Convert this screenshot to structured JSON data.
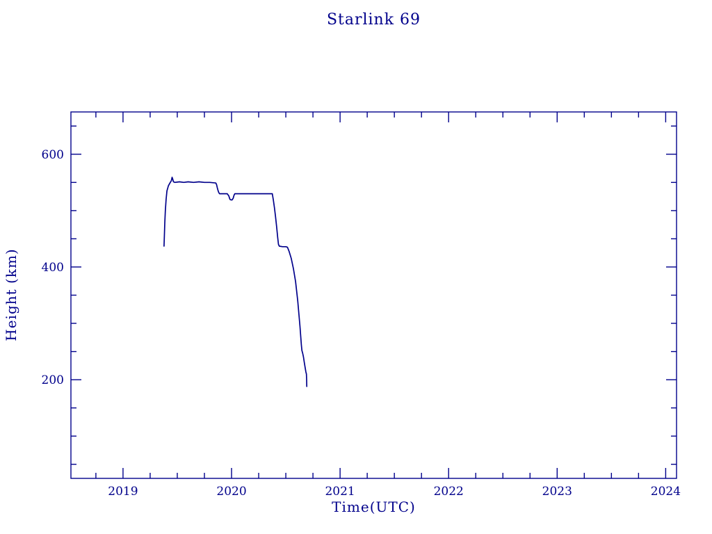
{
  "chart_data": {
    "type": "line",
    "title": "Starlink 69",
    "xlabel": "Time(UTC)",
    "ylabel": "Height (km)",
    "xlim": [
      2018.52,
      2024.1
    ],
    "ylim": [
      25,
      675
    ],
    "x_major_ticks": [
      2019,
      2020,
      2021,
      2022,
      2023,
      2024
    ],
    "x_minor_step": 0.25,
    "y_major_ticks": [
      200,
      400,
      600
    ],
    "y_minor_step": 50,
    "grid": false,
    "legend": "none",
    "colors": {
      "line": "#00008B",
      "axis": "#00008B",
      "text": "#00008B",
      "background": "#FFFFFF"
    },
    "series": [
      {
        "name": "Starlink 69 height",
        "points": [
          [
            2019.378,
            437
          ],
          [
            2019.381,
            455
          ],
          [
            2019.385,
            478
          ],
          [
            2019.39,
            500
          ],
          [
            2019.397,
            520
          ],
          [
            2019.405,
            535
          ],
          [
            2019.418,
            544
          ],
          [
            2019.432,
            549
          ],
          [
            2019.445,
            553
          ],
          [
            2019.452,
            559
          ],
          [
            2019.458,
            556
          ],
          [
            2019.465,
            551
          ],
          [
            2019.478,
            550
          ],
          [
            2019.52,
            551
          ],
          [
            2019.56,
            550
          ],
          [
            2019.6,
            551
          ],
          [
            2019.65,
            550
          ],
          [
            2019.7,
            551
          ],
          [
            2019.75,
            550
          ],
          [
            2019.8,
            550
          ],
          [
            2019.855,
            549
          ],
          [
            2019.862,
            546
          ],
          [
            2019.868,
            541
          ],
          [
            2019.875,
            536
          ],
          [
            2019.882,
            532
          ],
          [
            2019.89,
            530
          ],
          [
            2019.96,
            530
          ],
          [
            2019.975,
            526
          ],
          [
            2019.985,
            520
          ],
          [
            2019.995,
            519
          ],
          [
            2020.005,
            519
          ],
          [
            2020.015,
            522
          ],
          [
            2020.022,
            527
          ],
          [
            2020.03,
            530
          ],
          [
            2020.1,
            530
          ],
          [
            2020.2,
            530
          ],
          [
            2020.3,
            530
          ],
          [
            2020.375,
            530
          ],
          [
            2020.385,
            519
          ],
          [
            2020.395,
            505
          ],
          [
            2020.405,
            490
          ],
          [
            2020.415,
            472
          ],
          [
            2020.425,
            452
          ],
          [
            2020.432,
            440
          ],
          [
            2020.44,
            437
          ],
          [
            2020.47,
            436
          ],
          [
            2020.5,
            436
          ],
          [
            2020.515,
            435
          ],
          [
            2020.53,
            428
          ],
          [
            2020.55,
            415
          ],
          [
            2020.57,
            397
          ],
          [
            2020.59,
            374
          ],
          [
            2020.61,
            340
          ],
          [
            2020.63,
            295
          ],
          [
            2020.643,
            262
          ],
          [
            2020.648,
            252
          ],
          [
            2020.655,
            247
          ],
          [
            2020.663,
            240
          ],
          [
            2020.67,
            231
          ],
          [
            2020.678,
            222
          ],
          [
            2020.685,
            214
          ],
          [
            2020.69,
            210
          ],
          [
            2020.692,
            200
          ],
          [
            2020.693,
            188
          ]
        ]
      }
    ]
  }
}
